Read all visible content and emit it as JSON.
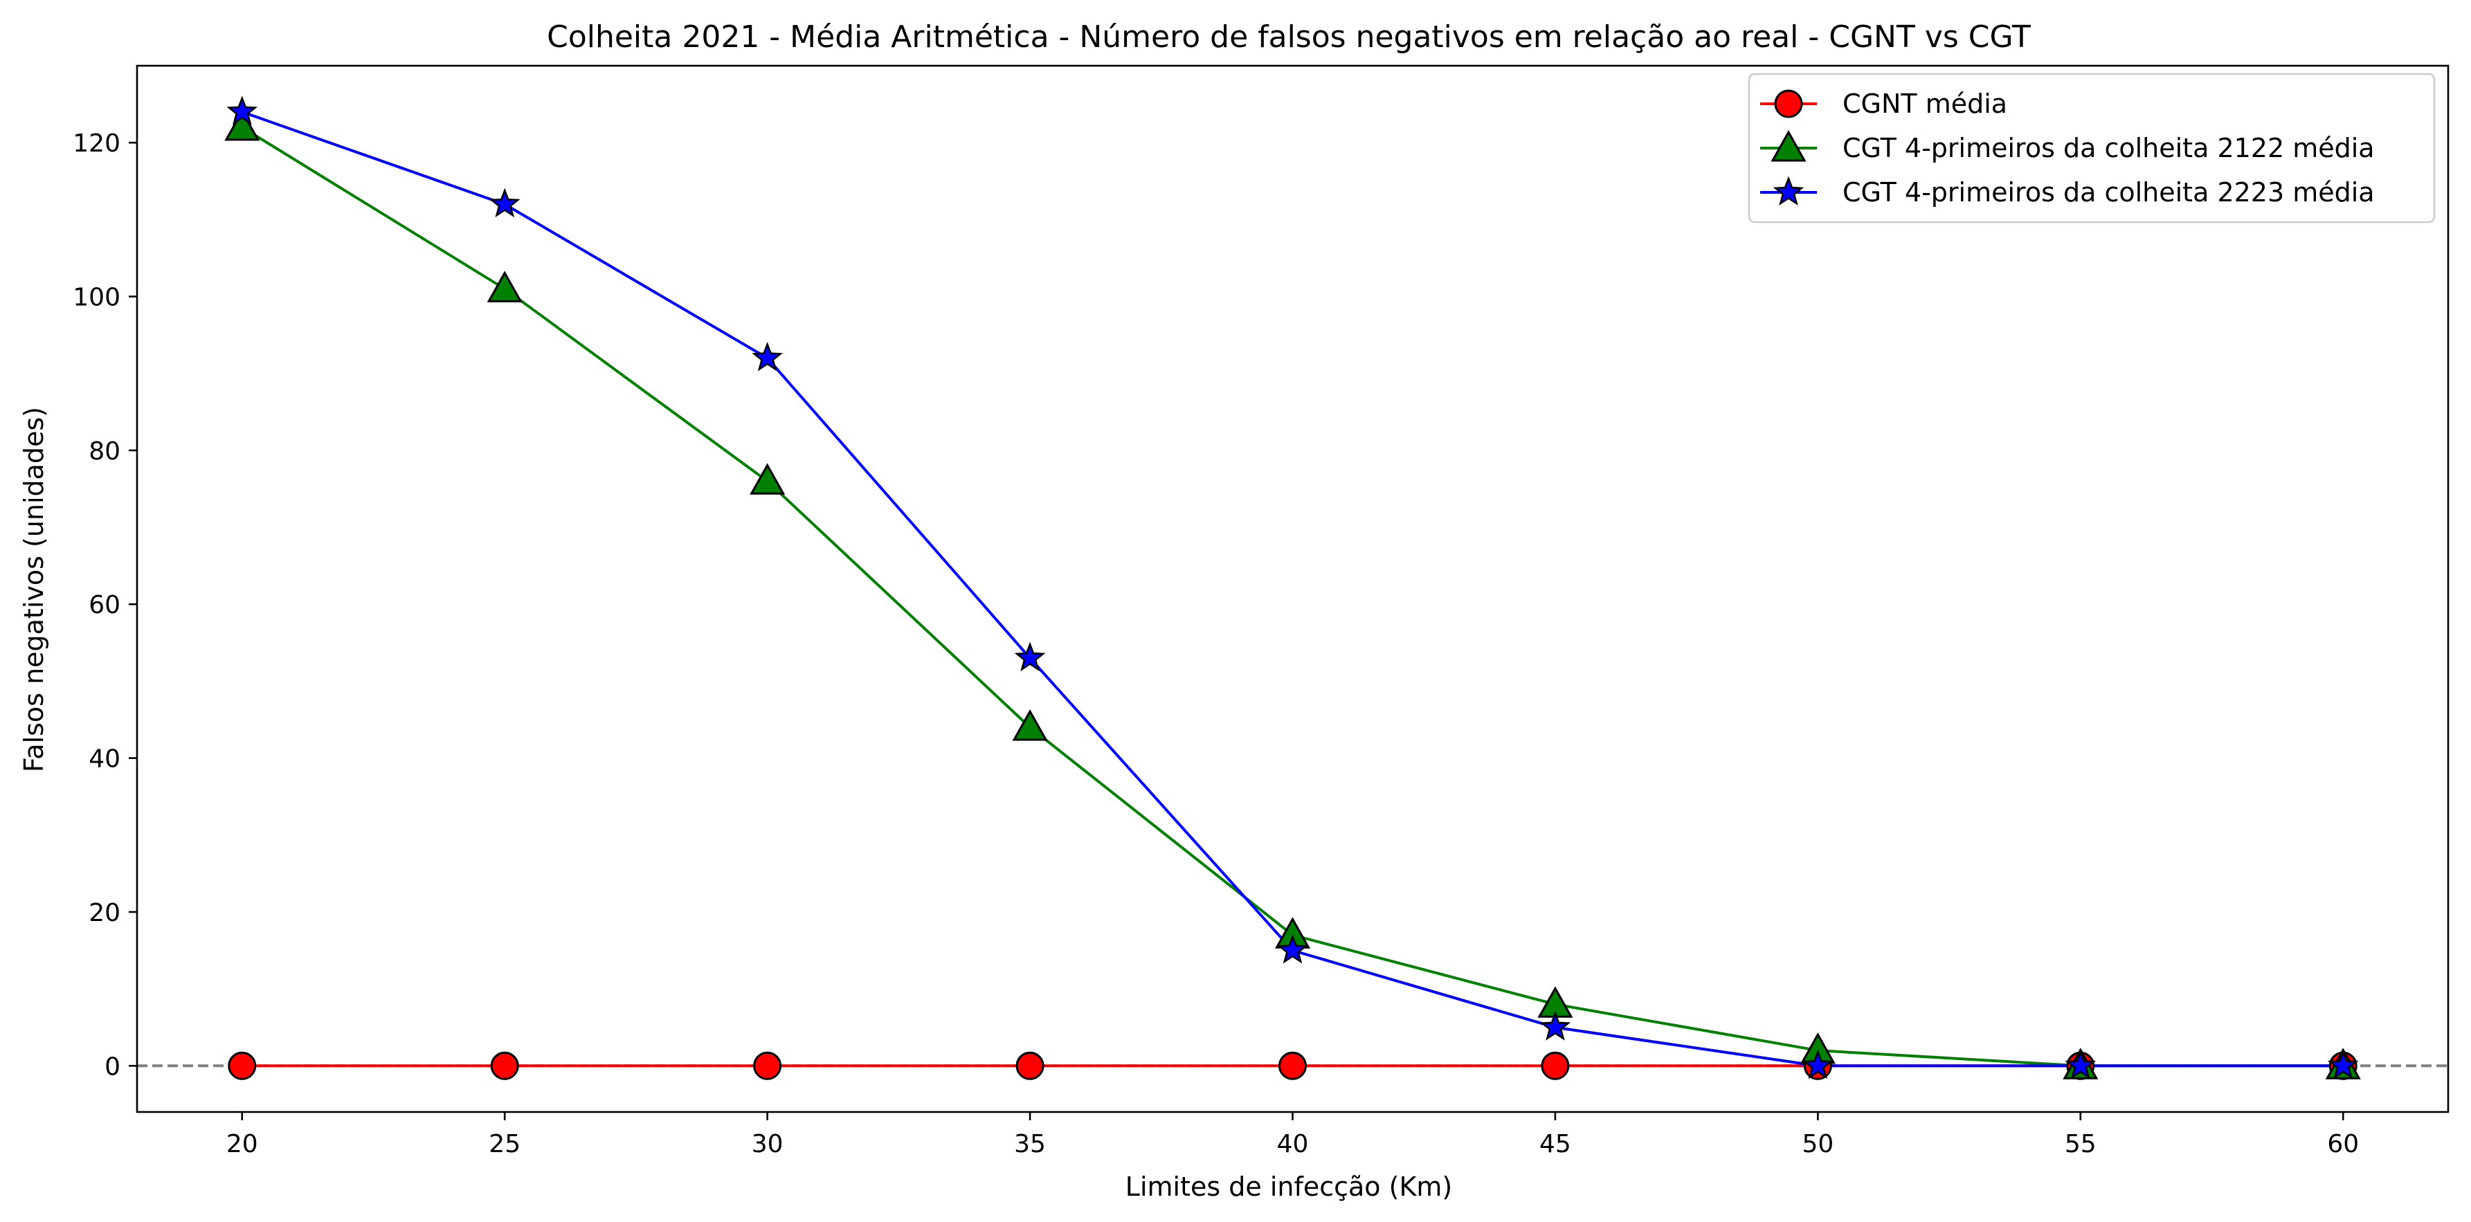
{
  "chart_data": {
    "type": "line",
    "title": "Colheita 2021 - Média Aritmética - Número de falsos negativos em relação ao real - CGNT vs CGT",
    "xlabel": "Limites de infecção (Km)",
    "ylabel": "Falsos negativos (unidades)",
    "x": [
      20,
      25,
      30,
      35,
      40,
      45,
      50,
      55,
      60
    ],
    "x_ticks": [
      "20",
      "25",
      "30",
      "35",
      "40",
      "45",
      "50",
      "55",
      "60"
    ],
    "y_ticks": [
      "0",
      "20",
      "40",
      "60",
      "80",
      "100",
      "120"
    ],
    "xlim": [
      18,
      62
    ],
    "ylim": [
      -6,
      130
    ],
    "grid": false,
    "legend_position": "top-right",
    "reference_line": {
      "y": 0,
      "color": "#808080",
      "style": "dashed"
    },
    "series": [
      {
        "name": "CGNT média",
        "color": "#ff0000",
        "marker": "circle",
        "values": [
          0,
          0,
          0,
          0,
          0,
          0,
          0,
          0,
          0
        ]
      },
      {
        "name": "CGT 4-primeiros da colheita 2122 média",
        "color": "#008000",
        "marker": "triangle",
        "values": [
          122,
          101,
          76,
          44,
          17,
          8,
          2,
          0,
          0
        ]
      },
      {
        "name": "CGT 4-primeiros da colheita 2223 média",
        "color": "#0000ff",
        "marker": "star",
        "values": [
          124,
          112,
          92,
          53,
          15,
          5,
          0,
          0,
          0
        ]
      }
    ]
  }
}
